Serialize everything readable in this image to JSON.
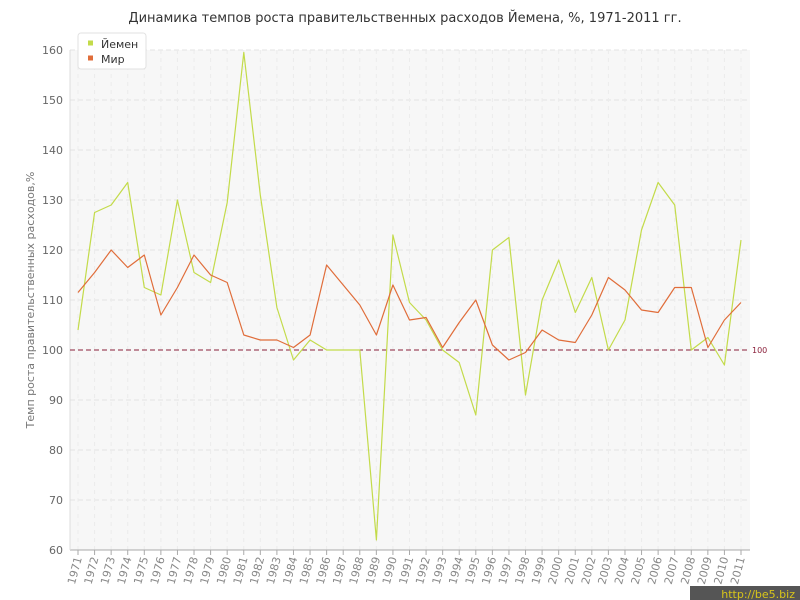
{
  "chart_data": {
    "type": "line",
    "title": "Динамика темпов роста правительственных расходов Йемена, %, 1971-2011 гг.",
    "xlabel": "",
    "ylabel": "Темп роста правительственных расходов,%",
    "ylim": [
      60,
      160
    ],
    "yticks": [
      60,
      70,
      80,
      90,
      100,
      110,
      120,
      130,
      140,
      150,
      160
    ],
    "x": [
      "1971",
      "1972",
      "1973",
      "1974",
      "1975",
      "1976",
      "1977",
      "1978",
      "1979",
      "1980",
      "1981",
      "1982",
      "1983",
      "1984",
      "1985",
      "1986",
      "1987",
      "1988",
      "1989",
      "1990",
      "1991",
      "1992",
      "1993",
      "1994",
      "1995",
      "1996",
      "1997",
      "1998",
      "1999",
      "2000",
      "2001",
      "2002",
      "2003",
      "2004",
      "2005",
      "2006",
      "2007",
      "2008",
      "2009",
      "2010",
      "2011"
    ],
    "grid": true,
    "legend_position": "top-left",
    "reference_line": {
      "value": 100,
      "label": "100",
      "color": "#8a1f3a"
    },
    "series": [
      {
        "name": "Йемен",
        "color": "#c3db4a",
        "values": [
          104,
          127.5,
          129,
          133.5,
          112.5,
          111,
          130,
          115.5,
          113.5,
          129.5,
          159.5,
          131,
          108.5,
          98,
          102,
          100,
          100,
          100,
          62,
          123,
          109.5,
          106,
          100,
          97.5,
          87,
          120,
          122.5,
          91,
          110,
          118,
          107.5,
          114.5,
          100,
          106,
          124,
          133.5,
          129,
          100,
          102.5,
          97,
          122
        ]
      },
      {
        "name": "Мир",
        "color": "#e06d3a",
        "values": [
          111.5,
          115.5,
          120,
          116.5,
          119,
          107,
          112.5,
          119,
          115,
          113.5,
          103,
          102,
          102,
          100.5,
          103,
          117,
          113,
          109,
          103,
          113,
          106,
          106.5,
          100.5,
          105.5,
          110,
          101,
          98,
          99.5,
          104,
          102,
          101.5,
          107,
          114.5,
          112,
          108,
          107.5,
          112.5,
          112.5,
          100.5,
          106,
          109.5
        ]
      }
    ]
  },
  "watermark": "http://be5.biz"
}
